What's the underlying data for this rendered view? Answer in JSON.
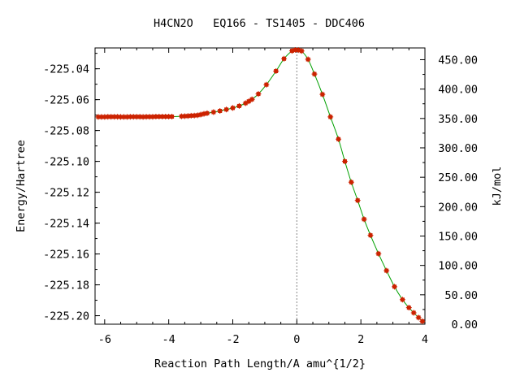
{
  "chart_data": {
    "type": "line",
    "title": "H4CN2O   EQ166 - TS1405 - DDC406",
    "xlabel": "Reaction Path Length/A amu^{1/2}",
    "ylabel": "Energy/Hartree",
    "y2label": "kJ/mol",
    "xlim": [
      -6.3,
      4
    ],
    "ylim": [
      -225.2055,
      -225.0265
    ],
    "y2lim": [
      0,
      470
    ],
    "xticks": [
      "-6",
      "-4",
      "-2",
      "0",
      "2",
      "4"
    ],
    "xtick_values": [
      -6,
      -4,
      -2,
      0,
      2,
      4
    ],
    "yticks": [
      "-225.04",
      "-225.06",
      "-225.08",
      "-225.10",
      "-225.12",
      "-225.14",
      "-225.16",
      "-225.18",
      "-225.20"
    ],
    "ytick_values": [
      -225.04,
      -225.06,
      -225.08,
      -225.1,
      -225.12,
      -225.14,
      -225.16,
      -225.18,
      -225.2
    ],
    "y2ticks": [
      "0.00",
      "50.00",
      "100.00",
      "150.00",
      "200.00",
      "250.00",
      "300.00",
      "350.00",
      "400.00",
      "450.00"
    ],
    "y2tick_values": [
      0,
      50,
      100,
      150,
      200,
      250,
      300,
      350,
      400,
      450
    ],
    "ts_x": 0,
    "grid": false,
    "line_color": "#00a000",
    "marker_color": "#cc2200",
    "series": [
      {
        "x": [
          -6.2,
          -6.1,
          -6.0,
          -5.9,
          -5.8,
          -5.7,
          -5.6,
          -5.5,
          -5.4,
          -5.3,
          -5.2,
          -5.1,
          -5.0,
          -4.9,
          -4.8,
          -4.7,
          -4.6,
          -4.5,
          -4.4,
          -4.3,
          -4.2,
          -4.1,
          -4.0,
          -3.9,
          -3.6,
          -3.5,
          -3.4,
          -3.3,
          -3.2,
          -3.1,
          -3.0,
          -2.9,
          -2.8,
          -2.6,
          -2.4,
          -2.2,
          -2.0,
          -1.8,
          -1.6,
          -1.5,
          -1.4,
          -1.2,
          -0.95,
          -0.65,
          -0.4,
          -0.15,
          -0.05,
          0.05,
          0.15,
          0.35,
          0.55,
          0.8,
          1.05,
          1.3,
          1.5,
          1.7,
          1.9,
          2.1,
          2.3,
          2.55,
          2.8,
          3.05,
          3.3,
          3.5,
          3.65,
          3.8,
          3.92
        ],
        "y": [
          -225.0712,
          -225.0712,
          -225.0712,
          -225.0711,
          -225.0711,
          -225.0711,
          -225.0711,
          -225.0712,
          -225.0712,
          -225.0712,
          -225.0711,
          -225.0711,
          -225.0711,
          -225.0711,
          -225.0712,
          -225.0711,
          -225.0711,
          -225.0711,
          -225.071,
          -225.071,
          -225.071,
          -225.071,
          -225.071,
          -225.071,
          -225.0708,
          -225.0707,
          -225.0706,
          -225.0704,
          -225.0703,
          -225.0701,
          -225.0697,
          -225.0692,
          -225.0688,
          -225.0681,
          -225.0673,
          -225.0664,
          -225.0654,
          -225.0641,
          -225.0623,
          -225.0611,
          -225.0598,
          -225.0563,
          -225.0503,
          -225.0415,
          -225.0335,
          -225.0284,
          -225.0278,
          -225.0279,
          -225.0285,
          -225.0339,
          -225.0434,
          -225.0566,
          -225.0712,
          -225.0856,
          -225.1,
          -225.1135,
          -225.1253,
          -225.1375,
          -225.1479,
          -225.1598,
          -225.1708,
          -225.1812,
          -225.1896,
          -225.1948,
          -225.1981,
          -225.2012,
          -225.2036
        ]
      }
    ]
  }
}
